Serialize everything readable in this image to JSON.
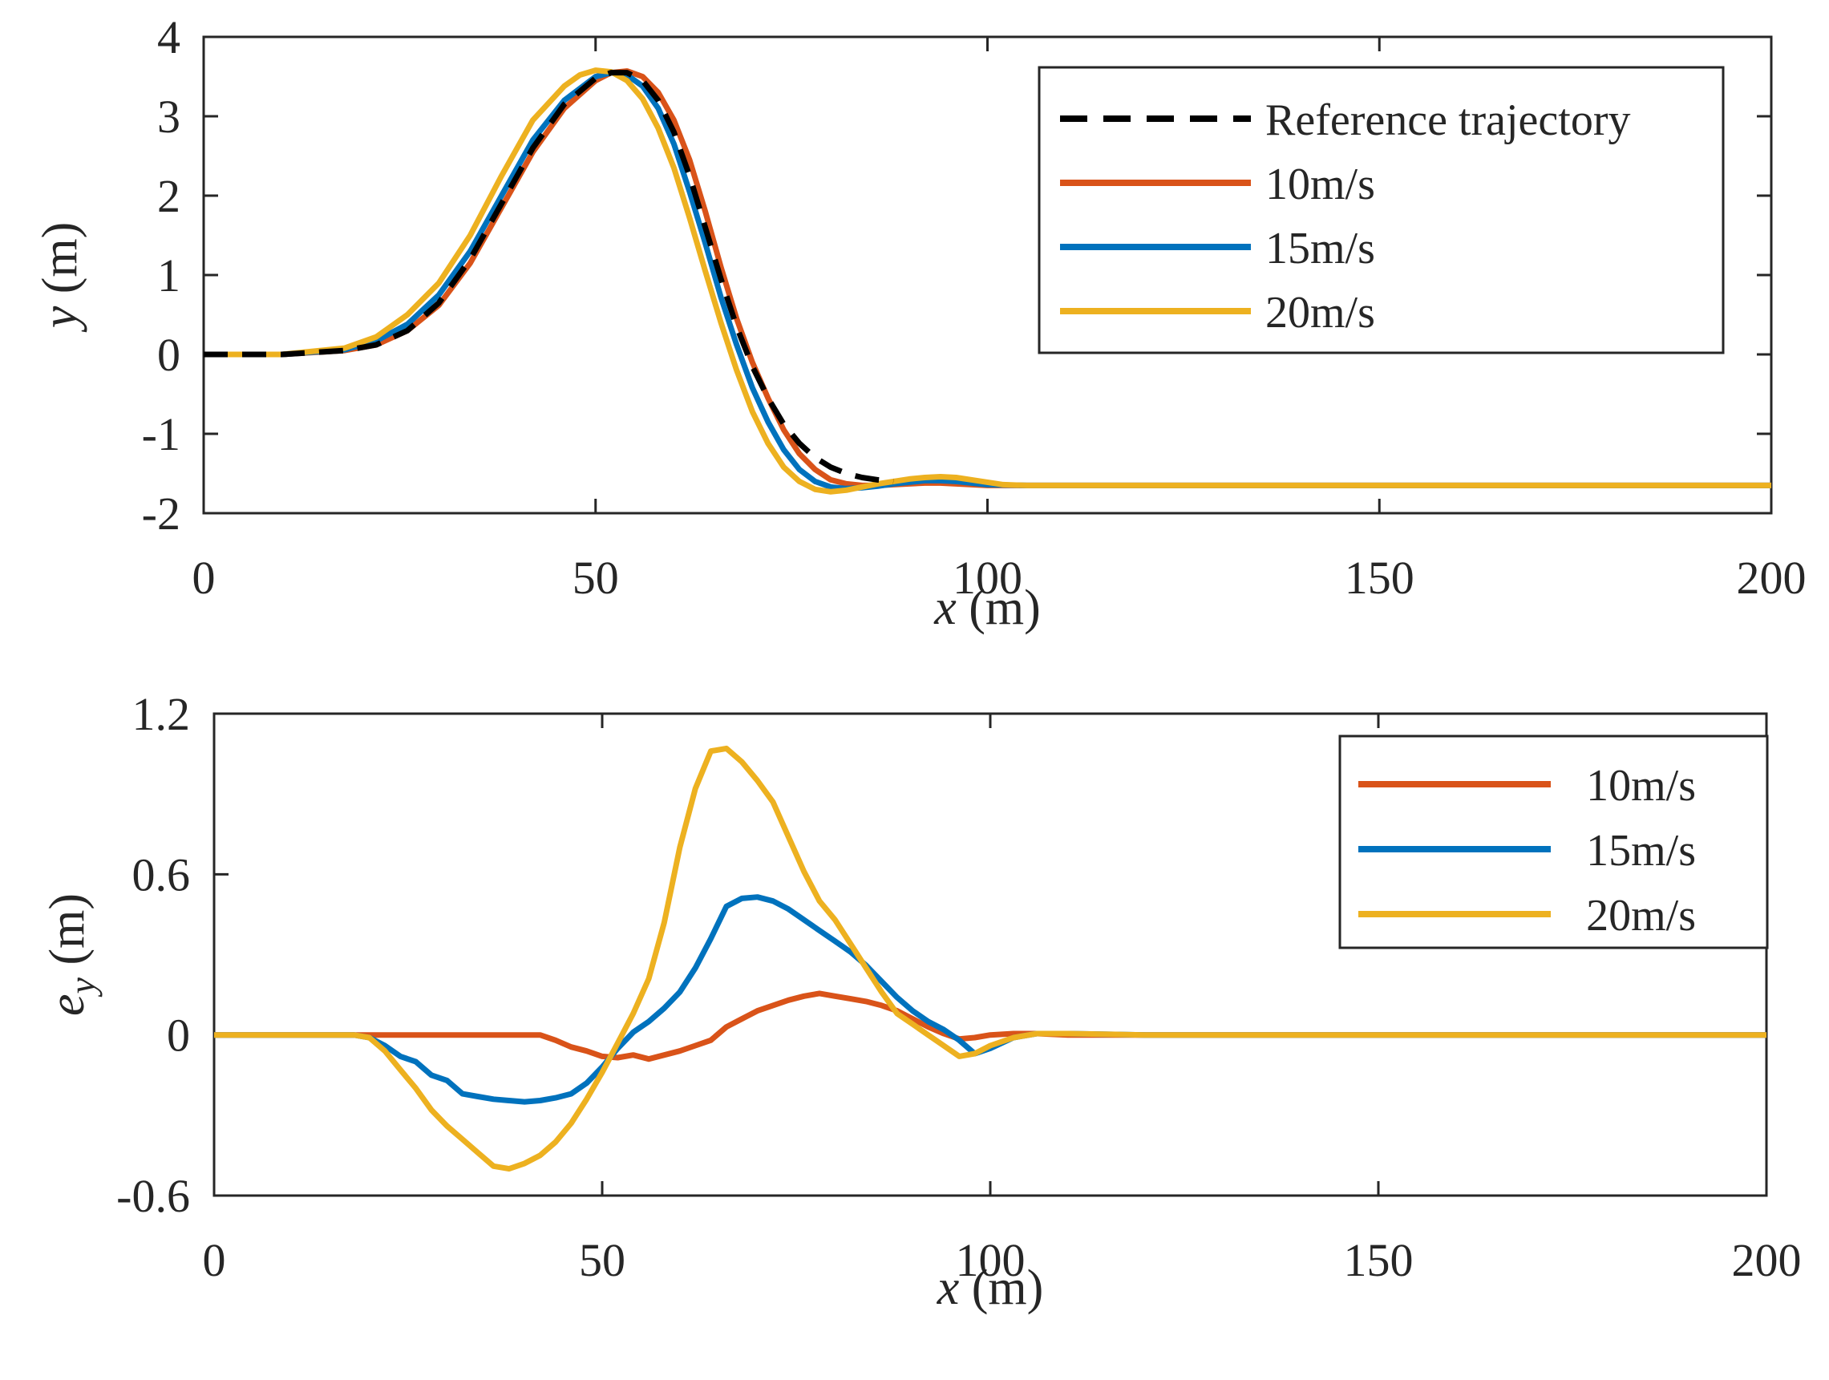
{
  "chart_data": [
    {
      "type": "line",
      "xlabel_var": "x",
      "xlabel_unit": " (m)",
      "ylabel_var": "y",
      "ylabel_unit": " (m)",
      "xlim": [
        0,
        200
      ],
      "ylim": [
        -2,
        4
      ],
      "xticks": [
        0,
        50,
        100,
        150,
        200
      ],
      "yticks": [
        -2,
        -1,
        0,
        1,
        2,
        3,
        4
      ],
      "grid": false,
      "legend_position": "top-right",
      "series": [
        {
          "name": "Reference trajectory",
          "color": "#000000",
          "dash": true,
          "x": [
            0,
            10,
            18,
            22,
            26,
            30,
            34,
            38,
            42,
            46,
            50,
            52,
            54,
            56,
            58,
            60,
            62,
            64,
            66,
            68,
            70,
            72,
            74,
            76,
            78,
            80,
            82,
            84,
            86,
            88
          ],
          "y": [
            0,
            0,
            0.05,
            0.12,
            0.3,
            0.65,
            1.2,
            1.9,
            2.6,
            3.15,
            3.48,
            3.55,
            3.55,
            3.45,
            3.2,
            2.8,
            2.25,
            1.6,
            0.95,
            0.35,
            -0.15,
            -0.55,
            -0.88,
            -1.12,
            -1.3,
            -1.42,
            -1.5,
            -1.55,
            -1.58,
            -1.6
          ]
        },
        {
          "name": "10m/s",
          "color": "#D95319",
          "dash": false,
          "x": [
            0,
            10,
            18,
            22,
            26,
            30,
            34,
            38,
            42,
            46,
            50,
            52,
            54,
            56,
            58,
            60,
            62,
            64,
            66,
            68,
            70,
            72,
            74,
            76,
            78,
            80,
            82,
            84,
            86,
            88,
            90,
            92,
            94,
            96,
            98,
            100,
            105,
            110,
            120,
            150,
            200
          ],
          "y": [
            0,
            0,
            0.05,
            0.12,
            0.3,
            0.62,
            1.15,
            1.85,
            2.55,
            3.1,
            3.45,
            3.55,
            3.57,
            3.5,
            3.3,
            2.95,
            2.45,
            1.8,
            1.1,
            0.45,
            -0.1,
            -0.55,
            -0.95,
            -1.25,
            -1.45,
            -1.58,
            -1.63,
            -1.65,
            -1.65,
            -1.64,
            -1.63,
            -1.62,
            -1.62,
            -1.63,
            -1.64,
            -1.65,
            -1.65,
            -1.65,
            -1.65,
            -1.65,
            -1.65
          ]
        },
        {
          "name": "15m/s",
          "color": "#0072BD",
          "dash": false,
          "x": [
            0,
            10,
            18,
            22,
            26,
            30,
            34,
            38,
            42,
            46,
            50,
            52,
            54,
            56,
            58,
            60,
            62,
            64,
            66,
            68,
            70,
            72,
            74,
            76,
            78,
            80,
            82,
            84,
            86,
            88,
            90,
            92,
            94,
            96,
            98,
            100,
            105,
            110,
            120,
            150,
            200
          ],
          "y": [
            0,
            0,
            0.06,
            0.17,
            0.38,
            0.75,
            1.3,
            2.0,
            2.7,
            3.2,
            3.5,
            3.55,
            3.52,
            3.38,
            3.1,
            2.65,
            2.05,
            1.4,
            0.72,
            0.12,
            -0.42,
            -0.85,
            -1.2,
            -1.45,
            -1.6,
            -1.67,
            -1.69,
            -1.68,
            -1.66,
            -1.63,
            -1.61,
            -1.59,
            -1.59,
            -1.6,
            -1.62,
            -1.64,
            -1.65,
            -1.65,
            -1.65,
            -1.65,
            -1.65
          ]
        },
        {
          "name": "20m/s",
          "color": "#EDB120",
          "dash": false,
          "x": [
            0,
            10,
            18,
            22,
            26,
            30,
            34,
            38,
            42,
            46,
            48,
            50,
            52,
            54,
            56,
            58,
            60,
            62,
            64,
            66,
            68,
            70,
            72,
            74,
            76,
            78,
            80,
            82,
            84,
            86,
            88,
            90,
            92,
            94,
            96,
            98,
            100,
            102,
            105,
            110,
            120,
            150,
            200
          ],
          "y": [
            0,
            0,
            0.08,
            0.22,
            0.5,
            0.9,
            1.5,
            2.25,
            2.95,
            3.38,
            3.52,
            3.58,
            3.56,
            3.45,
            3.22,
            2.85,
            2.35,
            1.72,
            1.05,
            0.4,
            -0.2,
            -0.72,
            -1.12,
            -1.42,
            -1.6,
            -1.7,
            -1.73,
            -1.71,
            -1.67,
            -1.63,
            -1.6,
            -1.57,
            -1.55,
            -1.54,
            -1.55,
            -1.58,
            -1.61,
            -1.64,
            -1.65,
            -1.65,
            -1.65,
            -1.65,
            -1.65
          ]
        }
      ]
    },
    {
      "type": "line",
      "xlabel_var": "x",
      "xlabel_unit": " (m)",
      "ylabel_var": "e",
      "ylabel_sub": "y",
      "ylabel_unit": " (m)",
      "xlim": [
        0,
        200
      ],
      "ylim": [
        -0.6,
        1.2
      ],
      "xticks": [
        0,
        50,
        100,
        150,
        200
      ],
      "yticks": [
        -0.6,
        0,
        0.6,
        1.2
      ],
      "ytick_labels": [
        "-0.6",
        "0",
        "0.6",
        "1.2"
      ],
      "grid": false,
      "legend_position": "top-right",
      "series": [
        {
          "name": "10m/s",
          "color": "#D95319",
          "dash": false,
          "x": [
            0,
            10,
            18,
            25,
            30,
            36,
            42,
            44,
            46,
            48,
            50,
            52,
            54,
            56,
            58,
            60,
            62,
            64,
            66,
            68,
            70,
            72,
            74,
            76,
            78,
            80,
            82,
            84,
            86,
            88,
            90,
            92,
            94,
            96,
            98,
            100,
            103,
            106,
            110,
            120,
            150,
            200
          ],
          "y": [
            0,
            0,
            0,
            0,
            0,
            0,
            0,
            -0.02,
            -0.045,
            -0.06,
            -0.08,
            -0.085,
            -0.075,
            -0.09,
            -0.075,
            -0.06,
            -0.04,
            -0.02,
            0.03,
            0.06,
            0.09,
            0.11,
            0.13,
            0.145,
            0.155,
            0.145,
            0.135,
            0.125,
            0.11,
            0.09,
            0.06,
            0.03,
            0.005,
            -0.015,
            -0.01,
            0.0,
            0.005,
            0.005,
            0.0,
            0,
            0,
            0
          ]
        },
        {
          "name": "15m/s",
          "color": "#0072BD",
          "dash": false,
          "x": [
            0,
            10,
            18,
            20,
            22,
            24,
            26,
            28,
            30,
            32,
            34,
            36,
            38,
            40,
            42,
            44,
            46,
            48,
            50,
            52,
            54,
            56,
            58,
            60,
            62,
            64,
            66,
            68,
            70,
            72,
            74,
            76,
            78,
            80,
            82,
            84,
            86,
            88,
            90,
            92,
            94,
            96,
            98,
            100,
            103,
            106,
            110,
            120,
            150,
            200
          ],
          "y": [
            0,
            0,
            0,
            -0.01,
            -0.04,
            -0.08,
            -0.1,
            -0.15,
            -0.17,
            -0.22,
            -0.23,
            -0.24,
            -0.245,
            -0.25,
            -0.245,
            -0.235,
            -0.22,
            -0.18,
            -0.12,
            -0.05,
            0.01,
            0.05,
            0.1,
            0.16,
            0.25,
            0.36,
            0.48,
            0.51,
            0.515,
            0.5,
            0.47,
            0.43,
            0.39,
            0.35,
            0.31,
            0.26,
            0.2,
            0.14,
            0.09,
            0.05,
            0.02,
            -0.02,
            -0.07,
            -0.05,
            -0.01,
            0.005,
            0.005,
            0,
            0,
            0
          ]
        },
        {
          "name": "20m/s",
          "color": "#EDB120",
          "dash": false,
          "x": [
            0,
            10,
            18,
            20,
            22,
            24,
            26,
            28,
            30,
            32,
            34,
            36,
            38,
            40,
            42,
            44,
            46,
            48,
            50,
            52,
            54,
            56,
            58,
            60,
            62,
            64,
            66,
            68,
            70,
            72,
            74,
            76,
            78,
            80,
            82,
            84,
            86,
            88,
            90,
            92,
            94,
            96,
            98,
            100,
            103,
            106,
            110,
            120,
            150,
            200
          ],
          "y": [
            0,
            0,
            0,
            -0.01,
            -0.06,
            -0.13,
            -0.2,
            -0.28,
            -0.34,
            -0.39,
            -0.44,
            -0.49,
            -0.5,
            -0.48,
            -0.45,
            -0.4,
            -0.33,
            -0.24,
            -0.14,
            -0.03,
            0.08,
            0.21,
            0.42,
            0.7,
            0.92,
            1.06,
            1.07,
            1.02,
            0.95,
            0.87,
            0.74,
            0.61,
            0.5,
            0.43,
            0.34,
            0.25,
            0.16,
            0.08,
            0.04,
            0.0,
            -0.04,
            -0.08,
            -0.07,
            -0.04,
            -0.01,
            0.005,
            0.005,
            0,
            0,
            0
          ]
        }
      ]
    }
  ]
}
